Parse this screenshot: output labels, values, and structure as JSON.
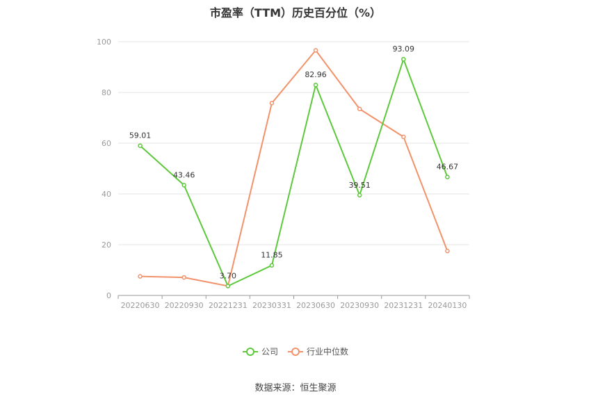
{
  "chart_data": {
    "type": "line",
    "title": "市盈率（TTM）历史百分位（%）",
    "categories": [
      "20220630",
      "20220930",
      "20221231",
      "20230331",
      "20230630",
      "20230930",
      "20231231",
      "20240130"
    ],
    "ylim": [
      0,
      100
    ],
    "yticks": [
      0,
      20,
      40,
      60,
      80,
      100
    ],
    "grid": true,
    "legend_position": "bottom",
    "series": [
      {
        "name": "公司",
        "color": "#5cc83a",
        "values": [
          59.01,
          43.46,
          3.7,
          11.85,
          82.96,
          39.51,
          93.09,
          46.67
        ],
        "labels": [
          "59.01",
          "43.46",
          "3.70",
          "11.85",
          "82.96",
          "39.51",
          "93.09",
          "46.67"
        ]
      },
      {
        "name": "行业中位数",
        "color": "#f2926a",
        "values": [
          7.5,
          7.1,
          3.7,
          75.8,
          96.6,
          73.5,
          62.5,
          17.5
        ]
      }
    ]
  },
  "source": "数据来源：恒生聚源"
}
